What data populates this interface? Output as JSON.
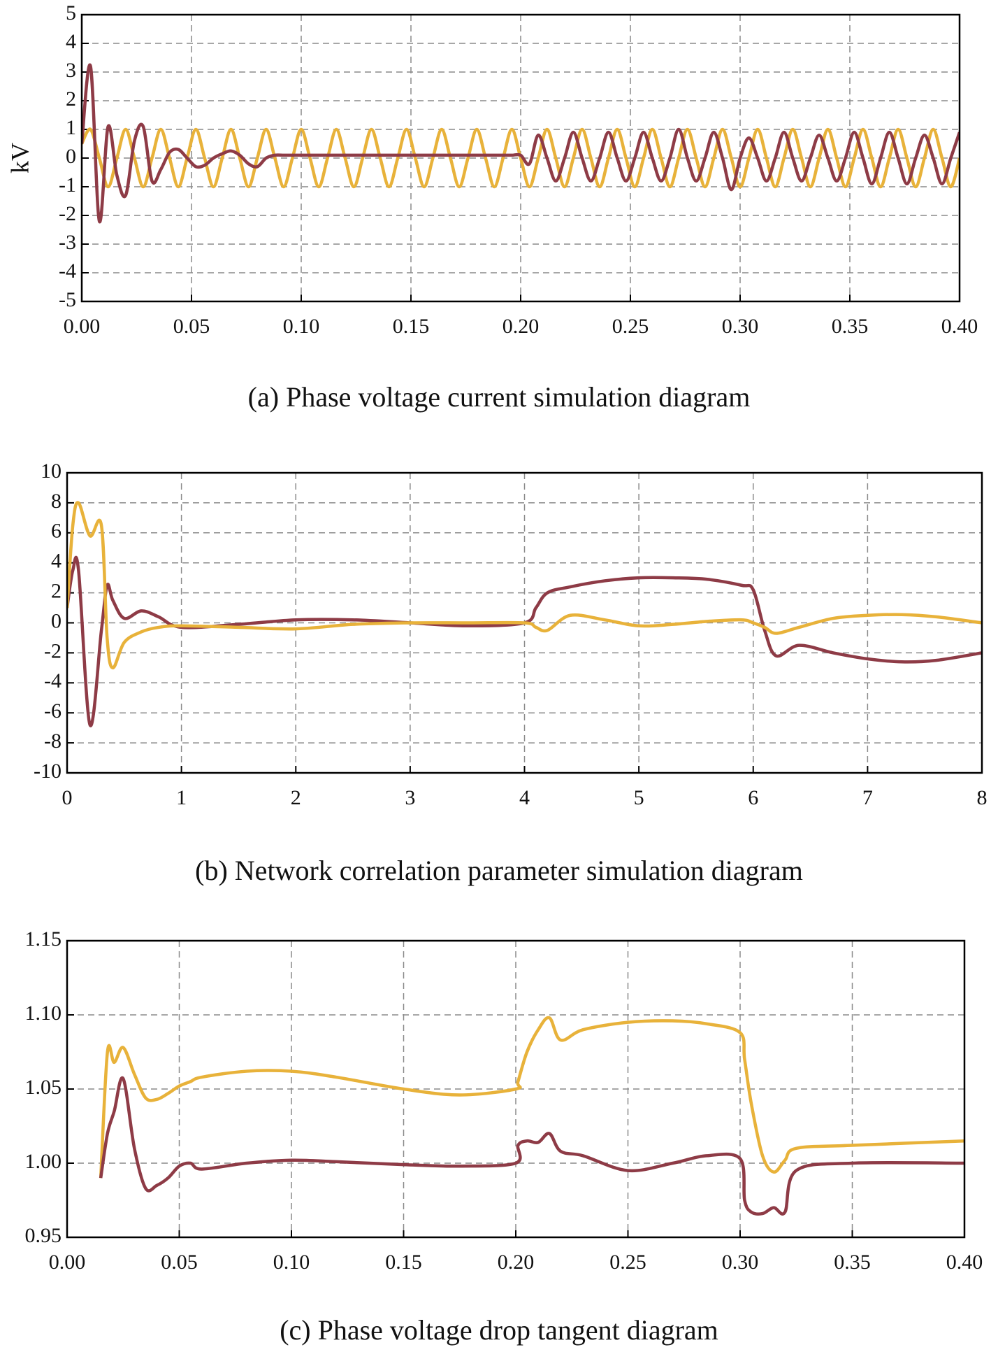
{
  "chart_data": [
    {
      "type": "line",
      "ylabel": "kV",
      "caption": "(a) Phase voltage current simulation diagram",
      "x": [
        0,
        0.004,
        0.008,
        0.012,
        0.016,
        0.02,
        0.024,
        0.028,
        0.032,
        0.036,
        0.04,
        0.044,
        0.048,
        0.052,
        0.056,
        0.06,
        0.064,
        0.068,
        0.072,
        0.076,
        0.08,
        0.084,
        0.088,
        0.092,
        0.096,
        0.1,
        0.104,
        0.108,
        0.112,
        0.116,
        0.12,
        0.124,
        0.128,
        0.132,
        0.136,
        0.14,
        0.144,
        0.148,
        0.152,
        0.156,
        0.16,
        0.164,
        0.168,
        0.172,
        0.176,
        0.18,
        0.184,
        0.188,
        0.192,
        0.196,
        0.2,
        0.204,
        0.208,
        0.212,
        0.216,
        0.22,
        0.224,
        0.228,
        0.232,
        0.236,
        0.24,
        0.244,
        0.248,
        0.252,
        0.256,
        0.26,
        0.264,
        0.268,
        0.272,
        0.276,
        0.28,
        0.284,
        0.288,
        0.292,
        0.296,
        0.3,
        0.304,
        0.308,
        0.312,
        0.316,
        0.32,
        0.324,
        0.328,
        0.332,
        0.336,
        0.34,
        0.344,
        0.348,
        0.352,
        0.356,
        0.36,
        0.364,
        0.368,
        0.372,
        0.376,
        0.38,
        0.384,
        0.388,
        0.392,
        0.396,
        0.4
      ],
      "series": [
        {
          "color": "#e8b23a",
          "values": [
            0.5,
            1,
            0,
            -1,
            0,
            1,
            0,
            -1,
            0,
            1,
            0,
            -1,
            0,
            1,
            0,
            -1,
            0,
            1,
            0,
            -1,
            0,
            1,
            0,
            -1,
            0,
            1,
            0,
            -1,
            0,
            1,
            0,
            -1,
            0,
            1,
            0,
            -1,
            0,
            1,
            0,
            -1,
            0,
            1,
            0,
            -1,
            0,
            1,
            0,
            -1,
            0,
            1,
            0,
            -1,
            0,
            1,
            0,
            -1,
            0,
            1,
            0,
            -1,
            0,
            1,
            0,
            -1,
            0,
            1,
            0,
            -1,
            0,
            1,
            0,
            -1,
            0,
            1,
            0,
            -1,
            0,
            1,
            0,
            -1,
            0,
            1,
            0,
            -1,
            0,
            1,
            0,
            -1,
            0,
            1,
            0,
            -1,
            0,
            1,
            0,
            -1,
            0,
            1,
            0,
            -1,
            0
          ]
        },
        {
          "color": "#8e3b46",
          "values": [
            0.5,
            3.2,
            -2.2,
            1.1,
            -0.6,
            -1.3,
            0.6,
            1.1,
            -0.8,
            -0.4,
            0.2,
            0.3,
            0,
            -0.3,
            -0.25,
            0,
            0.15,
            0.25,
            0.1,
            -0.2,
            -0.3,
            0,
            0.1,
            0.1,
            0.1,
            0.1,
            0.1,
            0.1,
            0.1,
            0.1,
            0.1,
            0.1,
            0.1,
            0.1,
            0.1,
            0.1,
            0.1,
            0.1,
            0.1,
            0.1,
            0.1,
            0.1,
            0.1,
            0.1,
            0.1,
            0.1,
            0.1,
            0.1,
            0.1,
            0.1,
            0.1,
            -0.2,
            0.8,
            0,
            -0.8,
            0,
            0.9,
            0,
            -0.8,
            0,
            0.9,
            0,
            -0.8,
            0,
            0.9,
            0,
            -0.8,
            0,
            1.0,
            0,
            -0.8,
            0,
            0.9,
            0,
            -1.1,
            0,
            0.7,
            0,
            -0.8,
            0,
            0.9,
            0,
            -0.8,
            0,
            0.8,
            0,
            -0.8,
            0,
            0.9,
            0,
            -0.9,
            0,
            0.9,
            0,
            -0.9,
            0,
            0.8,
            0,
            -0.9,
            0,
            0.9
          ]
        }
      ],
      "xlim": [
        0,
        0.4
      ],
      "ylim": [
        -5,
        5
      ],
      "xticks": [
        {
          "value": 0,
          "label": "0.00"
        },
        {
          "value": 0.05,
          "label": "0.05"
        },
        {
          "value": 0.1,
          "label": "0.10"
        },
        {
          "value": 0.15,
          "label": "0.15"
        },
        {
          "value": 0.2,
          "label": "0.20"
        },
        {
          "value": 0.25,
          "label": "0.25"
        },
        {
          "value": 0.3,
          "label": "0.30"
        },
        {
          "value": 0.35,
          "label": "0.35"
        },
        {
          "value": 0.4,
          "label": "0.40"
        }
      ],
      "yticks": [
        -5,
        -4,
        -3,
        -2,
        -1,
        0,
        1,
        2,
        3,
        4,
        5
      ],
      "grid": true
    },
    {
      "type": "line",
      "caption": "(b) Network correlation parameter simulation diagram",
      "x": [
        0,
        0.05,
        0.1,
        0.2,
        0.3,
        0.35,
        0.4,
        0.5,
        0.65,
        0.8,
        1,
        1.5,
        2,
        2.5,
        3,
        3.5,
        4,
        4.1,
        4.2,
        4.4,
        4.7,
        5,
        5.3,
        5.6,
        5.9,
        6,
        6.1,
        6.2,
        6.4,
        6.7,
        7,
        7.3,
        7.6,
        8
      ],
      "series": [
        {
          "color": "#8e3b46",
          "values": [
            1,
            3.5,
            3.5,
            -6.8,
            -0.5,
            2.5,
            1.5,
            0.3,
            0.8,
            0.4,
            -0.3,
            -0.1,
            0.2,
            0.2,
            0,
            -0.2,
            0,
            1,
            2,
            2.4,
            2.8,
            3,
            3,
            2.9,
            2.5,
            2.2,
            -0.5,
            -2.2,
            -1.5,
            -2,
            -2.4,
            -2.6,
            -2.5,
            -2
          ]
        },
        {
          "color": "#e8b23a",
          "values": [
            1,
            6.5,
            8,
            5.8,
            6.5,
            -1,
            -3,
            -1.3,
            -0.6,
            -0.3,
            -0.2,
            -0.3,
            -0.4,
            -0.1,
            0,
            0,
            0,
            -0.3,
            -0.5,
            0.5,
            0.2,
            -0.2,
            -0.1,
            0.1,
            0.2,
            0,
            -0.3,
            -0.7,
            -0.3,
            0.3,
            0.5,
            0.55,
            0.4,
            0
          ]
        }
      ],
      "xlim": [
        0,
        8
      ],
      "ylim": [
        -10,
        10
      ],
      "xticks": [
        0,
        1,
        2,
        3,
        4,
        5,
        6,
        7,
        8
      ],
      "yticks": [
        -10,
        -8,
        -6,
        -4,
        -2,
        0,
        2,
        4,
        6,
        8,
        10
      ],
      "grid": true
    },
    {
      "type": "line",
      "caption": "(c) Phase voltage drop tangent diagram",
      "x": [
        0.015,
        0.018,
        0.021,
        0.025,
        0.03,
        0.035,
        0.04,
        0.045,
        0.05,
        0.055,
        0.06,
        0.08,
        0.1,
        0.12,
        0.15,
        0.175,
        0.2,
        0.201,
        0.205,
        0.21,
        0.215,
        0.22,
        0.23,
        0.25,
        0.27,
        0.285,
        0.3,
        0.302,
        0.305,
        0.31,
        0.315,
        0.32,
        0.325,
        0.35,
        0.4
      ],
      "series": [
        {
          "color": "#e8b23a",
          "values": [
            0.99,
            1.075,
            1.068,
            1.078,
            1.06,
            1.044,
            1.043,
            1.047,
            1.052,
            1.055,
            1.058,
            1.062,
            1.062,
            1.058,
            1.05,
            1.046,
            1.05,
            1.055,
            1.075,
            1.09,
            1.098,
            1.083,
            1.09,
            1.095,
            1.096,
            1.094,
            1.088,
            1.07,
            1.04,
            1.005,
            0.994,
            1.002,
            1.01,
            1.012,
            1.015
          ]
        },
        {
          "color": "#8e3b46",
          "values": [
            0.99,
            1.02,
            1.035,
            1.057,
            1.01,
            0.983,
            0.985,
            0.99,
            0.998,
            1.0,
            0.996,
            1.0,
            1.002,
            1.001,
            0.999,
            0.998,
            1.0,
            1.012,
            1.015,
            1.014,
            1.02,
            1.008,
            1.005,
            0.995,
            1.0,
            1.005,
            1.003,
            0.975,
            0.967,
            0.966,
            0.97,
            0.967,
            0.995,
            1.0,
            1.0
          ]
        }
      ],
      "xlim": [
        0,
        0.4
      ],
      "ylim": [
        0.95,
        1.15
      ],
      "xticks": [
        {
          "value": 0,
          "label": "0.00"
        },
        {
          "value": 0.05,
          "label": "0.05"
        },
        {
          "value": 0.1,
          "label": "0.10"
        },
        {
          "value": 0.15,
          "label": "0.15"
        },
        {
          "value": 0.2,
          "label": "0.20"
        },
        {
          "value": 0.25,
          "label": "0.25"
        },
        {
          "value": 0.3,
          "label": "0.30"
        },
        {
          "value": 0.35,
          "label": "0.35"
        },
        {
          "value": 0.4,
          "label": "0.40"
        }
      ],
      "yticks": [
        0.95,
        1.05,
        {
          "value": 1,
          "label": "1.00"
        },
        {
          "value": 1.1,
          "label": "1.10"
        },
        1.15
      ],
      "grid": true
    }
  ]
}
